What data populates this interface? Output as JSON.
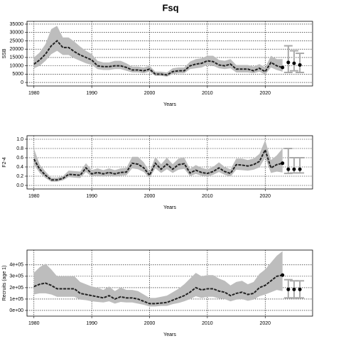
{
  "title": "Fsq",
  "chart_data": [
    {
      "type": "line",
      "ylabel": "SSB",
      "xlabel": "Years",
      "xlim": [
        1978.8,
        2028.2
      ],
      "xticks": [
        1980,
        1990,
        2000,
        2010,
        2020
      ],
      "ylim": [
        -2100,
        36700
      ],
      "yticks": [
        0,
        5000,
        10000,
        15000,
        20000,
        25000,
        30000,
        35000
      ],
      "grid": true,
      "color": "#222222",
      "band_color": "#bdbdbd",
      "bar_color": "#aaaaaa",
      "x": [
        1980,
        1981,
        1982,
        1983,
        1984,
        1985,
        1986,
        1987,
        1988,
        1989,
        1990,
        1991,
        1992,
        1993,
        1994,
        1995,
        1996,
        1997,
        1998,
        1999,
        2000,
        2001,
        2002,
        2003,
        2004,
        2005,
        2006,
        2007,
        2008,
        2009,
        2010,
        2011,
        2012,
        2013,
        2014,
        2015,
        2016,
        2017,
        2018,
        2019,
        2020,
        2021,
        2022,
        2023
      ],
      "values": [
        11000,
        13500,
        17000,
        22000,
        25000,
        21000,
        21000,
        18500,
        16500,
        15000,
        13500,
        10000,
        9500,
        9500,
        10000,
        10000,
        9000,
        7500,
        7500,
        7000,
        8000,
        5000,
        5000,
        4500,
        6500,
        7000,
        7000,
        10000,
        11000,
        11500,
        13000,
        12500,
        10500,
        10000,
        11000,
        8000,
        8000,
        8000,
        7000,
        8500,
        6500,
        12000,
        10000,
        9000
      ],
      "upper": [
        15000,
        18000,
        23000,
        32000,
        34000,
        27000,
        27000,
        24500,
        21500,
        19000,
        17000,
        13000,
        12000,
        12000,
        13000,
        13000,
        11500,
        9500,
        9500,
        9000,
        10000,
        6500,
        6500,
        6000,
        8500,
        9000,
        9000,
        12500,
        14000,
        14500,
        16000,
        16000,
        13500,
        13000,
        14000,
        10500,
        10500,
        10500,
        9500,
        11000,
        9000,
        16000,
        14000,
        14000
      ],
      "lower": [
        8500,
        10000,
        13000,
        17000,
        19000,
        16500,
        16500,
        14500,
        13000,
        11500,
        10500,
        8000,
        7500,
        7500,
        8000,
        8000,
        7000,
        6000,
        6000,
        5500,
        6500,
        4000,
        4000,
        3500,
        5000,
        5500,
        5500,
        8000,
        8500,
        9000,
        10500,
        10000,
        8500,
        8000,
        8500,
        6000,
        6000,
        6000,
        5500,
        6500,
        4800,
        9000,
        7500,
        6500
      ],
      "projection": {
        "x": [
          2024,
          2025,
          2026
        ],
        "values": [
          12000,
          11500,
          10500
        ],
        "lower": [
          6000,
          7000,
          6000
        ],
        "upper": [
          22000,
          19000,
          17500
        ]
      }
    },
    {
      "type": "line",
      "ylabel": "F2-4",
      "xlabel": "Years",
      "xlim": [
        1978.8,
        2028.2
      ],
      "xticks": [
        1980,
        1990,
        2000,
        2010,
        2020
      ],
      "ylim": [
        -0.077,
        1.077
      ],
      "yticks": [
        {
          "value": 0,
          "label": "0.0"
        },
        0.2,
        0.4,
        0.6,
        0.8,
        {
          "value": 1,
          "label": "1.0"
        }
      ],
      "grid": true,
      "color": "#222222",
      "band_color": "#bdbdbd",
      "bar_color": "#aaaaaa",
      "x": [
        1980,
        1981,
        1982,
        1983,
        1984,
        1985,
        1986,
        1987,
        1988,
        1989,
        1990,
        1991,
        1992,
        1993,
        1994,
        1995,
        1996,
        1997,
        1998,
        1999,
        2000,
        2001,
        2002,
        2003,
        2004,
        2005,
        2006,
        2007,
        2008,
        2009,
        2010,
        2011,
        2012,
        2013,
        2014,
        2015,
        2016,
        2017,
        2018,
        2019,
        2020,
        2021,
        2022,
        2023
      ],
      "values": [
        0.57,
        0.35,
        0.22,
        0.12,
        0.12,
        0.15,
        0.24,
        0.23,
        0.22,
        0.38,
        0.25,
        0.28,
        0.25,
        0.28,
        0.25,
        0.28,
        0.29,
        0.48,
        0.46,
        0.38,
        0.22,
        0.48,
        0.35,
        0.46,
        0.35,
        0.45,
        0.47,
        0.27,
        0.33,
        0.28,
        0.26,
        0.3,
        0.38,
        0.3,
        0.26,
        0.45,
        0.44,
        0.42,
        0.45,
        0.52,
        0.77,
        0.38,
        0.45,
        0.48
      ],
      "upper": [
        0.8,
        0.45,
        0.3,
        0.17,
        0.17,
        0.2,
        0.32,
        0.31,
        0.3,
        0.48,
        0.33,
        0.37,
        0.33,
        0.37,
        0.33,
        0.37,
        0.38,
        0.62,
        0.62,
        0.5,
        0.3,
        0.62,
        0.46,
        0.6,
        0.46,
        0.58,
        0.6,
        0.36,
        0.44,
        0.38,
        0.35,
        0.4,
        0.5,
        0.4,
        0.35,
        0.58,
        0.58,
        0.55,
        0.58,
        0.68,
        0.98,
        0.55,
        0.65,
        0.8
      ],
      "lower": [
        0.45,
        0.27,
        0.16,
        0.08,
        0.08,
        0.11,
        0.18,
        0.17,
        0.16,
        0.29,
        0.19,
        0.21,
        0.19,
        0.21,
        0.19,
        0.21,
        0.22,
        0.37,
        0.35,
        0.29,
        0.16,
        0.37,
        0.27,
        0.35,
        0.27,
        0.34,
        0.36,
        0.2,
        0.25,
        0.21,
        0.19,
        0.23,
        0.29,
        0.23,
        0.19,
        0.34,
        0.33,
        0.32,
        0.34,
        0.39,
        0.6,
        0.27,
        0.3,
        0.28
      ],
      "projection": {
        "x": [
          2024,
          2025,
          2026
        ],
        "values": [
          0.35,
          0.35,
          0.35
        ],
        "lower": [
          0.26,
          0.27,
          0.27
        ],
        "upper": [
          0.8,
          0.6,
          0.6
        ]
      }
    },
    {
      "type": "line",
      "ylabel": "Recruits (age 1)",
      "xlabel": "Years",
      "xlim": [
        1978.8,
        2028.2
      ],
      "xticks": [
        1980,
        1990,
        2000,
        2010,
        2020
      ],
      "ylim": [
        -50000,
        530000
      ],
      "yticks": [
        {
          "value": 0,
          "label": "0e+00"
        },
        {
          "value": 100000,
          "label": "1e+05"
        },
        {
          "value": 200000,
          "label": "2e+05"
        },
        {
          "value": 300000,
          "label": "3e+05"
        },
        {
          "value": 400000,
          "label": "4e+05"
        }
      ],
      "grid": true,
      "color": "#222222",
      "band_color": "#bdbdbd",
      "bar_color": "#aaaaaa",
      "x": [
        1980,
        1981,
        1982,
        1983,
        1984,
        1985,
        1986,
        1987,
        1988,
        1989,
        1990,
        1991,
        1992,
        1993,
        1994,
        1995,
        1996,
        1997,
        1998,
        1999,
        2000,
        2001,
        2002,
        2003,
        2004,
        2005,
        2006,
        2007,
        2008,
        2009,
        2010,
        2011,
        2012,
        2013,
        2014,
        2015,
        2016,
        2017,
        2018,
        2019,
        2020,
        2021,
        2022,
        2023
      ],
      "values": [
        210000,
        230000,
        240000,
        220000,
        190000,
        190000,
        190000,
        190000,
        150000,
        140000,
        130000,
        120000,
        110000,
        130000,
        100000,
        120000,
        110000,
        110000,
        100000,
        80000,
        60000,
        60000,
        65000,
        70000,
        90000,
        110000,
        130000,
        160000,
        200000,
        180000,
        190000,
        190000,
        170000,
        160000,
        130000,
        150000,
        160000,
        140000,
        150000,
        200000,
        220000,
        260000,
        300000,
        310000
      ],
      "upper": [
        330000,
        380000,
        410000,
        360000,
        300000,
        300000,
        300000,
        300000,
        250000,
        230000,
        210000,
        200000,
        180000,
        210000,
        170000,
        200000,
        180000,
        180000,
        170000,
        140000,
        110000,
        110000,
        120000,
        130000,
        160000,
        190000,
        230000,
        280000,
        330000,
        300000,
        310000,
        310000,
        280000,
        260000,
        220000,
        250000,
        260000,
        230000,
        250000,
        320000,
        360000,
        420000,
        480000,
        520000
      ],
      "lower": [
        140000,
        150000,
        150000,
        140000,
        120000,
        120000,
        120000,
        120000,
        95000,
        90000,
        80000,
        75000,
        70000,
        80000,
        60000,
        75000,
        70000,
        70000,
        60000,
        50000,
        35000,
        35000,
        40000,
        40000,
        55000,
        65000,
        80000,
        100000,
        125000,
        110000,
        120000,
        120000,
        105000,
        100000,
        80000,
        95000,
        100000,
        85000,
        95000,
        125000,
        140000,
        160000,
        180000,
        170000
      ],
      "projection": {
        "x": [
          2024,
          2025,
          2026
        ],
        "values": [
          185000,
          185000,
          185000
        ],
        "lower": [
          110000,
          110000,
          110000
        ],
        "upper": [
          270000,
          260000,
          260000
        ]
      }
    }
  ]
}
